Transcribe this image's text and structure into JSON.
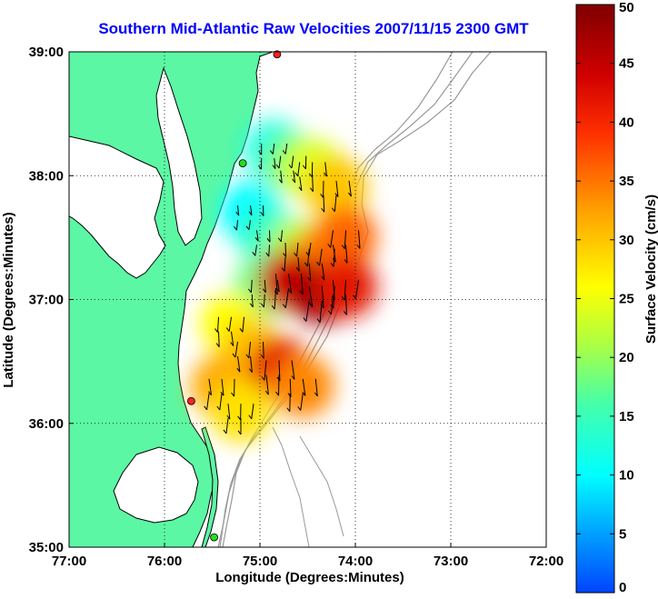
{
  "chart_data": {
    "type": "heatmap",
    "title": "Southern Mid-Atlantic Raw Velocities 2007/11/15 2300 GMT",
    "xlabel": "Longitude (Degrees:Minutes)",
    "ylabel": "Latitude (Degrees:Minutes)",
    "x_ticks": [
      "77:00",
      "76:00",
      "75:00",
      "74:00",
      "73:00",
      "72:00"
    ],
    "y_ticks": [
      "39:00",
      "38:00",
      "37:00",
      "36:00",
      "35:00"
    ],
    "xlim": [
      -77,
      -72
    ],
    "ylim": [
      35,
      39
    ],
    "grid": true,
    "colorbar": {
      "label": "Surface Velocity (cm/s)",
      "min": 0,
      "max": 50,
      "ticks": [
        "0",
        "5",
        "10",
        "15",
        "20",
        "25",
        "30",
        "35",
        "40",
        "45",
        "50"
      ]
    },
    "velocity_field": [
      {
        "lon": -74.85,
        "lat": 38.2,
        "speed": 12
      },
      {
        "lon": -74.65,
        "lat": 38.1,
        "speed": 18
      },
      {
        "lon": -74.45,
        "lat": 38.05,
        "speed": 24
      },
      {
        "lon": -74.2,
        "lat": 37.9,
        "speed": 30
      },
      {
        "lon": -75.1,
        "lat": 37.7,
        "speed": 10
      },
      {
        "lon": -74.9,
        "lat": 37.5,
        "speed": 14
      },
      {
        "lon": -74.6,
        "lat": 37.4,
        "speed": 22
      },
      {
        "lon": -74.35,
        "lat": 37.35,
        "speed": 34
      },
      {
        "lon": -74.1,
        "lat": 37.5,
        "speed": 36
      },
      {
        "lon": -74.95,
        "lat": 37.1,
        "speed": 18
      },
      {
        "lon": -74.7,
        "lat": 37.15,
        "speed": 44
      },
      {
        "lon": -74.35,
        "lat": 37.05,
        "speed": 48
      },
      {
        "lon": -74.1,
        "lat": 37.1,
        "speed": 42
      },
      {
        "lon": -75.3,
        "lat": 36.8,
        "speed": 26
      },
      {
        "lon": -75.1,
        "lat": 36.6,
        "speed": 30
      },
      {
        "lon": -74.8,
        "lat": 36.45,
        "speed": 42
      },
      {
        "lon": -74.55,
        "lat": 36.3,
        "speed": 34
      },
      {
        "lon": -75.4,
        "lat": 36.3,
        "speed": 32
      },
      {
        "lon": -75.2,
        "lat": 36.1,
        "speed": 28
      }
    ],
    "station_markers": [
      {
        "lon": -74.82,
        "lat": 38.98,
        "status": "red"
      },
      {
        "lon": -75.18,
        "lat": 38.1,
        "status": "green"
      },
      {
        "lon": -75.72,
        "lat": 36.18,
        "status": "red"
      },
      {
        "lon": -75.48,
        "lat": 35.08,
        "status": "green"
      }
    ],
    "colors": {
      "land": "#5cf7a4",
      "title": "#0000ff",
      "bathymetry": "#999999",
      "coast": "#000000"
    }
  }
}
